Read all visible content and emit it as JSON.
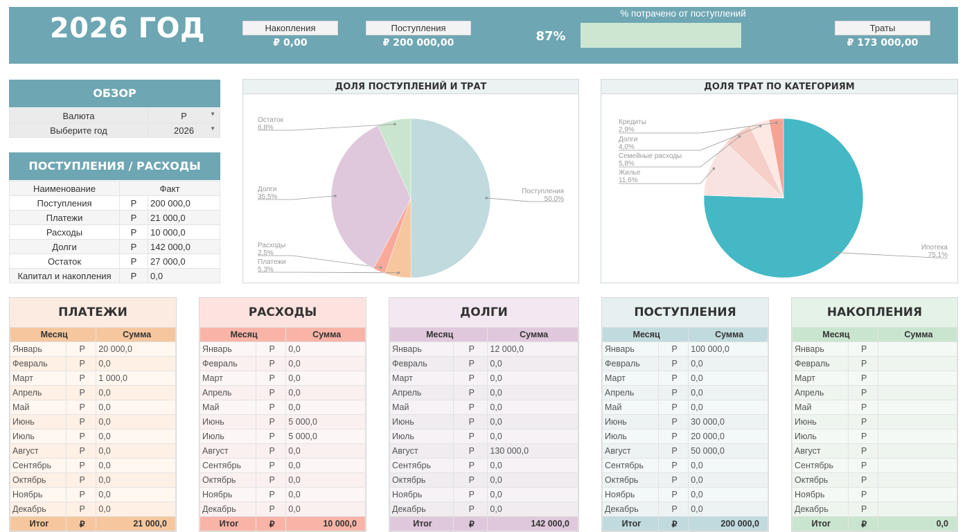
{
  "header": {
    "year_title": "2026 ГОД",
    "savings_label": "Накопления",
    "savings_value": "₽ 0,00",
    "income_label": "Поступления",
    "income_value": "₽ 200 000,00",
    "spent_pct_title": "% потрачено от поступлений",
    "spent_pct_value": "87%",
    "spent_pct_fraction": 0.87,
    "expenses_label": "Траты",
    "expenses_value": "₽ 173 000,00"
  },
  "overview": {
    "title": "ОБЗОР",
    "rows": [
      {
        "label": "Валюта",
        "value": "Р"
      },
      {
        "label": "Выберите год",
        "value": "2026"
      }
    ]
  },
  "income_expenses": {
    "title": "ПОСТУПЛЕНИЯ / РАСХОДЫ",
    "col_name": "Наименование",
    "col_fact": "Факт",
    "rows": [
      {
        "name": "Поступления",
        "cur": "Р",
        "value": "200 000,0"
      },
      {
        "name": "Платежи",
        "cur": "Р",
        "value": "21 000,0"
      },
      {
        "name": "Расходы",
        "cur": "Р",
        "value": "10 000,0"
      },
      {
        "name": "Долги",
        "cur": "Р",
        "value": "142 000,0"
      },
      {
        "name": "Остаток",
        "cur": "Р",
        "value": "27 000,0"
      },
      {
        "name": "Капитал и накопления",
        "cur": "Р",
        "value": "0,0"
      }
    ]
  },
  "chart_data": [
    {
      "type": "pie",
      "title": "ДОЛЯ ПОСТУПЛЕНИЙ И ТРАТ",
      "slices": [
        {
          "name": "Поступления",
          "value": 50.0,
          "label": "50,0%",
          "color": "#c0dadd"
        },
        {
          "name": "Платежи",
          "value": 5.3,
          "label": "5,3%",
          "color": "#f6c79e"
        },
        {
          "name": "Расходы",
          "value": 2.5,
          "label": "2,5%",
          "color": "#f9a99a"
        },
        {
          "name": "Долги",
          "value": 35.5,
          "label": "35,5%",
          "color": "#e0c8dc"
        },
        {
          "name": "Остаток",
          "value": 6.8,
          "label": "6,8%",
          "color": "#c9e5cf"
        }
      ]
    },
    {
      "type": "pie",
      "title": "ДОЛЯ ТРАТ ПО КАТЕГОРИЯМ",
      "slices": [
        {
          "name": "Ипотека",
          "value": 75.1,
          "label": "75,1%",
          "color": "#44b8c4"
        },
        {
          "name": "Жилье",
          "value": 11.6,
          "label": "11,6%",
          "color": "#f8e3e1"
        },
        {
          "name": "Семейные расходы",
          "value": 5.8,
          "label": "5,8%",
          "color": "#f5cfc8"
        },
        {
          "name": "Долги",
          "value": 4.0,
          "label": "4,0%",
          "color": "#fde8e3"
        },
        {
          "name": "Кредиты",
          "value": 2.9,
          "label": "2,9%",
          "color": "#f7a394"
        }
      ]
    }
  ],
  "monthly": {
    "col_month": "Месяц",
    "col_sum": "Сумма",
    "cur": "Р",
    "months": [
      "Январь",
      "Февраль",
      "Март",
      "Апрель",
      "Май",
      "Июнь",
      "Июль",
      "Август",
      "Сентябрь",
      "Октябрь",
      "Ноябрь",
      "Декабрь"
    ],
    "total_label": "Итог",
    "total_cur": "₽",
    "blocks": [
      {
        "title": "ПЛАТЕЖИ",
        "colors": {
          "title_bg": "#fcebe0",
          "head_bg": "#f6c79e",
          "row_bg": "#fff7f0",
          "row_alt": "#fff0e5"
        },
        "values": [
          "20 000,0",
          "0,0",
          "1 000,0",
          "0,0",
          "0,0",
          "0,0",
          "0,0",
          "0,0",
          "0,0",
          "0,0",
          "0,0",
          "0,0"
        ],
        "total": "21 000,0"
      },
      {
        "title": "РАСХОДЫ",
        "colors": {
          "title_bg": "#fde3df",
          "head_bg": "#f9b4a7",
          "row_bg": "#fdf6f6",
          "row_alt": "#fbf0f0"
        },
        "values": [
          "0,0",
          "0,0",
          "0,0",
          "0,0",
          "0,0",
          "5 000,0",
          "5 000,0",
          "0,0",
          "0,0",
          "0,0",
          "0,0",
          "0,0"
        ],
        "total": "10 000,0"
      },
      {
        "title": "ДОЛГИ",
        "colors": {
          "title_bg": "#f3e8f1",
          "head_bg": "#e0c8dc",
          "row_bg": "#f6f2f5",
          "row_alt": "#f0ecef"
        },
        "values": [
          "12 000,0",
          "0,0",
          "0,0",
          "0,0",
          "0,0",
          "0,0",
          "0,0",
          "130 000,0",
          "0,0",
          "0,0",
          "0,0",
          "0,0"
        ],
        "total": "142 000,0"
      },
      {
        "title": "ПОСТУПЛЕНИЯ",
        "colors": {
          "title_bg": "#e7f0f1",
          "head_bg": "#c0dadd",
          "row_bg": "#f3f8f8",
          "row_alt": "#edf3f3"
        },
        "values": [
          "100 000,0",
          "0,0",
          "0,0",
          "0,0",
          "0,0",
          "30 000,0",
          "20 000,0",
          "50 000,0",
          "0,0",
          "0,0",
          "0,0",
          "0,0"
        ],
        "total": "200 000,0"
      },
      {
        "title": "НАКОПЛЕНИЯ",
        "colors": {
          "title_bg": "#e5f2e7",
          "head_bg": "#c9e5cf",
          "row_bg": "#f4f9f5",
          "row_alt": "#eef5ef"
        },
        "values": [
          "",
          "",
          "",
          "",
          "",
          "",
          "",
          "",
          "",
          "",
          "",
          ""
        ],
        "total": "0,0"
      }
    ]
  }
}
